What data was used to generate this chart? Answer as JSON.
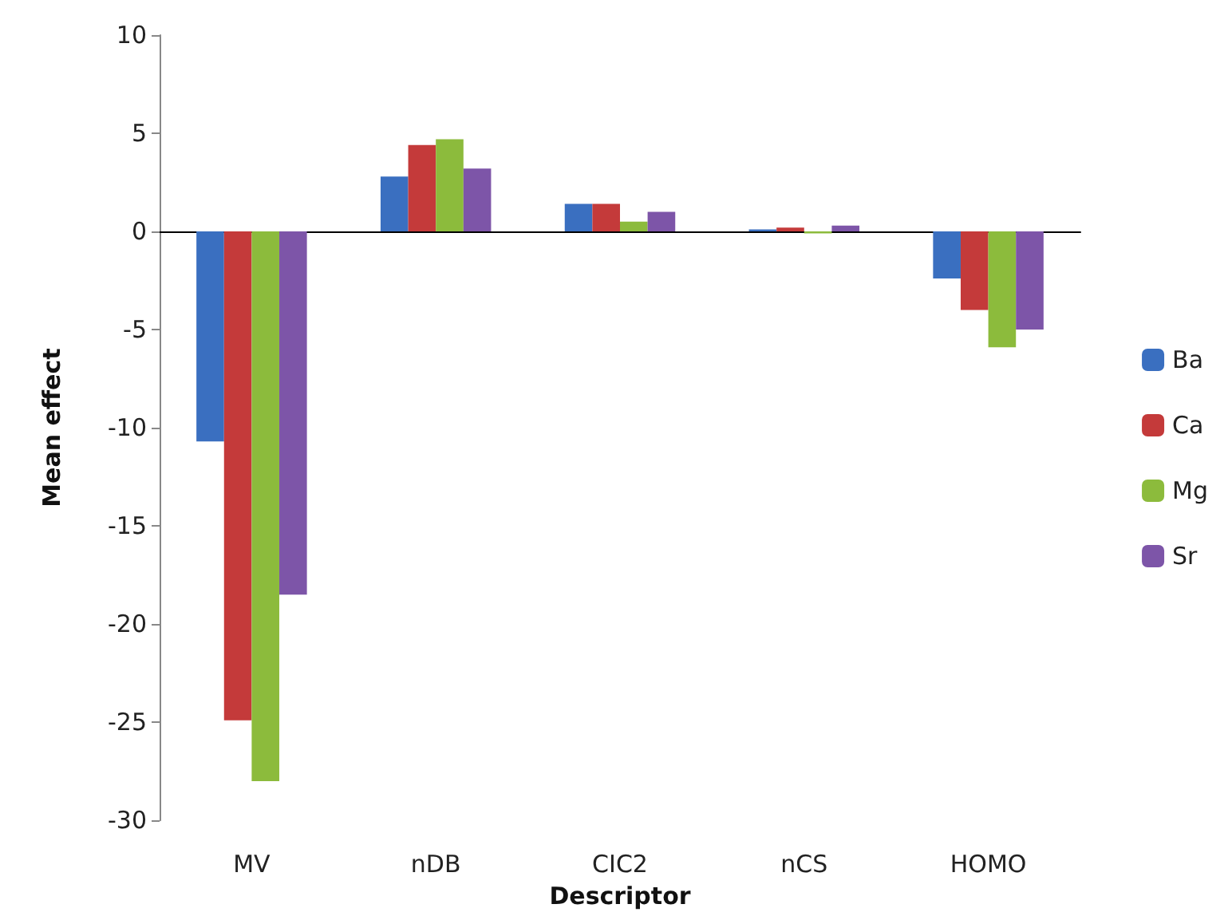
{
  "chart_data": {
    "type": "bar",
    "xlabel": "Descriptor",
    "ylabel": "Mean effect",
    "categories": [
      "MV",
      "nDB",
      "CIC2",
      "nCS",
      "HOMO"
    ],
    "series": [
      {
        "name": "Ba",
        "color": "#3a6fc0",
        "values": [
          -10.7,
          2.8,
          1.4,
          0.1,
          -2.4
        ]
      },
      {
        "name": "Ca",
        "color": "#c43a3a",
        "values": [
          -24.9,
          4.4,
          1.4,
          0.2,
          -4.0
        ]
      },
      {
        "name": "Mg",
        "color": "#8cbb3c",
        "values": [
          -28,
          4.7,
          0.5,
          -0.1,
          -5.9
        ]
      },
      {
        "name": "Sr",
        "color": "#7d55a8",
        "values": [
          -18.5,
          3.2,
          1.0,
          0.3,
          -5.0
        ]
      }
    ],
    "ylim": [
      -30,
      10
    ],
    "yticks": [
      -30,
      -25,
      -20,
      -15,
      -10,
      -5,
      0,
      5,
      10
    ],
    "legend": "right"
  }
}
